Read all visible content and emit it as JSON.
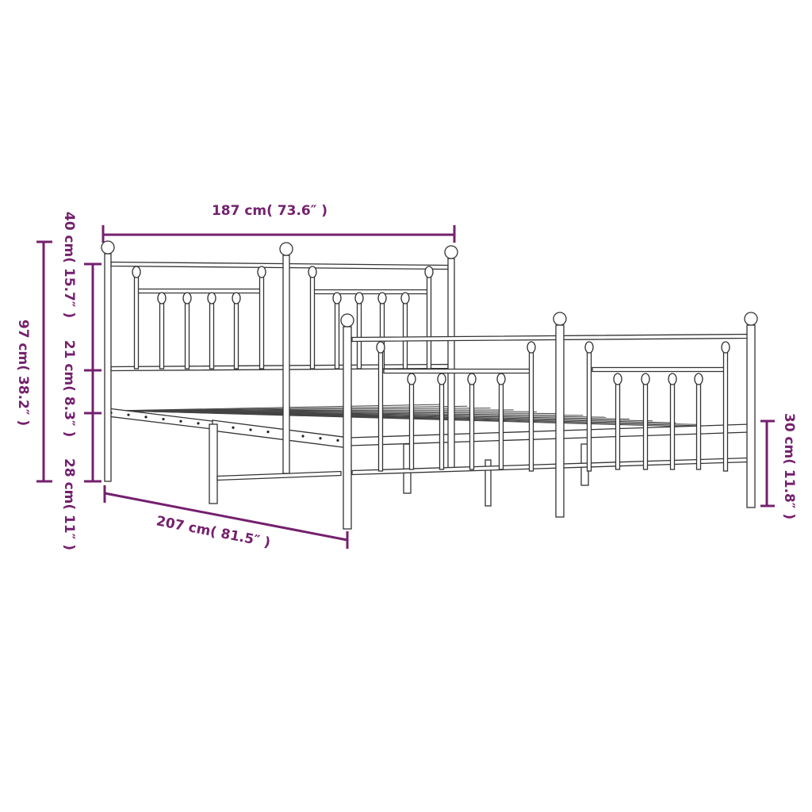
{
  "colors": {
    "accent": "#74206e",
    "line": "#333333"
  },
  "dimensions": {
    "width": "187 cm( 73.6″ )",
    "total_height": "97 cm( 38.2″ )",
    "headboard_upper": "40 cm( 15.7″ )",
    "headboard_middle": "21 cm( 8.3″ )",
    "under_bed": "28 cm( 11″ )",
    "length": "207 cm( 81.5″ )",
    "footboard_clearance": "30 cm( 11.8″ )"
  }
}
